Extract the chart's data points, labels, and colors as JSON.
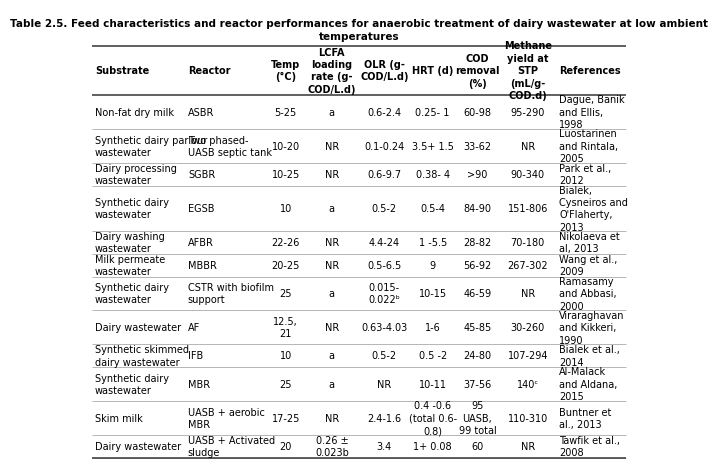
{
  "title": "Table 2.5. Feed characteristics and reactor performances for anaerobic treatment of dairy wastewater at low ambient\ntemperatures",
  "columns": [
    "Substrate",
    "Reactor",
    "Temp\n(°C)",
    "LCFA\nloading\nrate (g-\nCOD/L.d)",
    "OLR (g-\nCOD/L.d)",
    "HRT (d)",
    "COD\nremoval\n(%)",
    "Methane\nyield at\nSTP\n(mL/g-\nCOD.d)",
    "References"
  ],
  "col_widths_pts": [
    108,
    95,
    45,
    62,
    60,
    52,
    52,
    65,
    82
  ],
  "rows": [
    [
      "Non-fat dry milk",
      "ASBR",
      "5-25",
      "a",
      "0.6-2.4",
      "0.25- 1",
      "60-98",
      "95-290",
      "Dague, Banik\nand Ellis,\n1998"
    ],
    [
      "Synthetic dairy parlour\nwastewater",
      "Two phased-\nUASB septic tank",
      "10-20",
      "NR",
      "0.1-0.24",
      "3.5+ 1.5",
      "33-62",
      "NR",
      "Luostarinen\nand Rintala,\n2005"
    ],
    [
      "Dairy processing\nwastewater",
      "SGBR",
      "10-25",
      "NR",
      "0.6-9.7",
      "0.38- 4",
      ">90",
      "90-340",
      "Park et al.,\n2012"
    ],
    [
      "Synthetic dairy\nwastewater",
      "EGSB",
      "10",
      "a",
      "0.5-2",
      "0.5-4",
      "84-90",
      "151-806",
      "Bialek,\nCysneiros and\nO'Flaherty,\n2013"
    ],
    [
      "Dairy washing\nwastewater",
      "AFBR",
      "22-26",
      "NR",
      "4.4-24",
      "1 -5.5",
      "28-82",
      "70-180",
      "Nikolaeva et\nal, 2013"
    ],
    [
      "Milk permeate\nwastewater",
      "MBBR",
      "20-25",
      "NR",
      "0.5-6.5",
      "9",
      "56-92",
      "267-302",
      "Wang et al.,\n2009"
    ],
    [
      "Synthetic dairy\nwastewater",
      "CSTR with biofilm\nsupport",
      "25",
      "a",
      "0.015-\n0.022ᵇ",
      "10-15",
      "46-59",
      "NR",
      "Ramasamy\nand Abbasi,\n2000"
    ],
    [
      "Dairy wastewater",
      "AF",
      "12.5,\n21",
      "NR",
      "0.63-4.03",
      "1-6",
      "45-85",
      "30-260",
      "Viraraghavan\nand Kikkeri,\n1990"
    ],
    [
      "Synthetic skimmed\ndairy wastewater",
      "IFB",
      "10",
      "a",
      "0.5-2",
      "0.5 -2",
      "24-80",
      "107-294",
      "Bialek et al.,\n2014"
    ],
    [
      "Synthetic dairy\nwastewater",
      "MBR",
      "25",
      "a",
      "NR",
      "10-11",
      "37-56",
      "140ᶜ",
      "Al-Malack\nand Aldana,\n2015"
    ],
    [
      "Skim milk",
      "UASB + aerobic\nMBR",
      "17-25",
      "NR",
      "2.4-1.6",
      "0.4 -0.6\n(total 0.6-\n0.8)",
      "95\nUASB,\n99 total",
      "110-310",
      "Buntner et\nal., 2013"
    ],
    [
      "Dairy wastewater",
      "UASB + Activated\nsludge",
      "20",
      "0.26 ±\n0.023b",
      "3.4",
      "1+ 0.08",
      "60",
      "NR",
      "Tawfik et al.,\n2008"
    ]
  ],
  "font_size": 7.0,
  "header_font_size": 7.0,
  "title_font_size": 7.5,
  "text_color": "#000000",
  "thick_line_color": "#444444",
  "thin_line_color": "#999999",
  "thick_lw": 1.2,
  "thin_lw": 0.5
}
